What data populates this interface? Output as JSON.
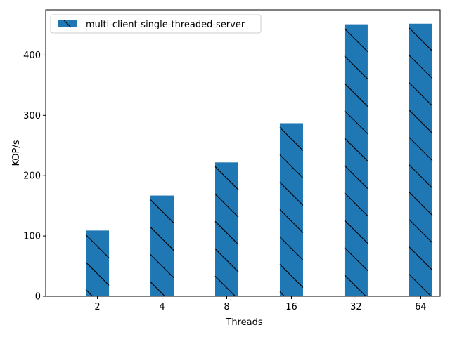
{
  "chart_data": {
    "type": "bar",
    "categories": [
      "2",
      "4",
      "8",
      "16",
      "32",
      "64"
    ],
    "series": [
      {
        "name": "multi-client-single-threaded-server",
        "values": [
          109,
          167,
          222,
          287,
          451,
          452
        ],
        "color": "#1f77b4",
        "hatch": "backslash"
      }
    ],
    "xlabel": "Threads",
    "ylabel": "KOP/s",
    "ylim": [
      0,
      475
    ],
    "yticks": [
      0,
      100,
      200,
      300,
      400
    ],
    "grid": false,
    "legend_position": "upper-left"
  }
}
